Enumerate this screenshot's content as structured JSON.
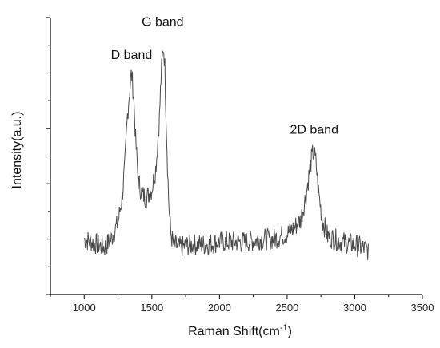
{
  "chart_data": {
    "type": "line",
    "title": "",
    "xlabel": "Raman Shift(cm",
    "xlabel_superscript": "-1",
    "xlabel_suffix": ")",
    "ylabel": "Intensity(a.u.)",
    "xlim": [
      750,
      3500
    ],
    "ylim": [
      0,
      1.0
    ],
    "x_ticks": [
      "1000",
      "1500",
      "2000",
      "2500",
      "3000",
      "3500"
    ],
    "y_tick_labels_shown": false,
    "grid": false,
    "legend": "none",
    "line_color": "#4a4a4a",
    "annotations": [
      {
        "text": "D band",
        "x": 1350,
        "y": 0.85
      },
      {
        "text": "G band",
        "x": 1580,
        "y": 0.97
      },
      {
        "text": "2D band",
        "x": 2700,
        "y": 0.58
      }
    ],
    "series": [
      {
        "x": [
          1000,
          1050,
          1100,
          1150,
          1200,
          1250,
          1280,
          1300,
          1320,
          1340,
          1350,
          1365,
          1380,
          1400,
          1430,
          1460,
          1500,
          1530,
          1555,
          1570,
          1585,
          1595,
          1610,
          1625,
          1640,
          1660,
          1700,
          1800,
          1900,
          2000,
          2100,
          2200,
          2300,
          2400,
          2500,
          2550,
          2600,
          2640,
          2670,
          2690,
          2700,
          2715,
          2730,
          2760,
          2800,
          2900,
          3000,
          3100
        ],
        "y": [
          0.2,
          0.19,
          0.18,
          0.17,
          0.2,
          0.26,
          0.35,
          0.46,
          0.65,
          0.76,
          0.8,
          0.72,
          0.56,
          0.41,
          0.36,
          0.35,
          0.38,
          0.46,
          0.63,
          0.8,
          0.9,
          0.84,
          0.56,
          0.33,
          0.22,
          0.18,
          0.17,
          0.18,
          0.18,
          0.19,
          0.19,
          0.19,
          0.2,
          0.2,
          0.22,
          0.24,
          0.27,
          0.36,
          0.46,
          0.51,
          0.51,
          0.47,
          0.38,
          0.27,
          0.21,
          0.19,
          0.18,
          0.16
        ]
      }
    ]
  }
}
